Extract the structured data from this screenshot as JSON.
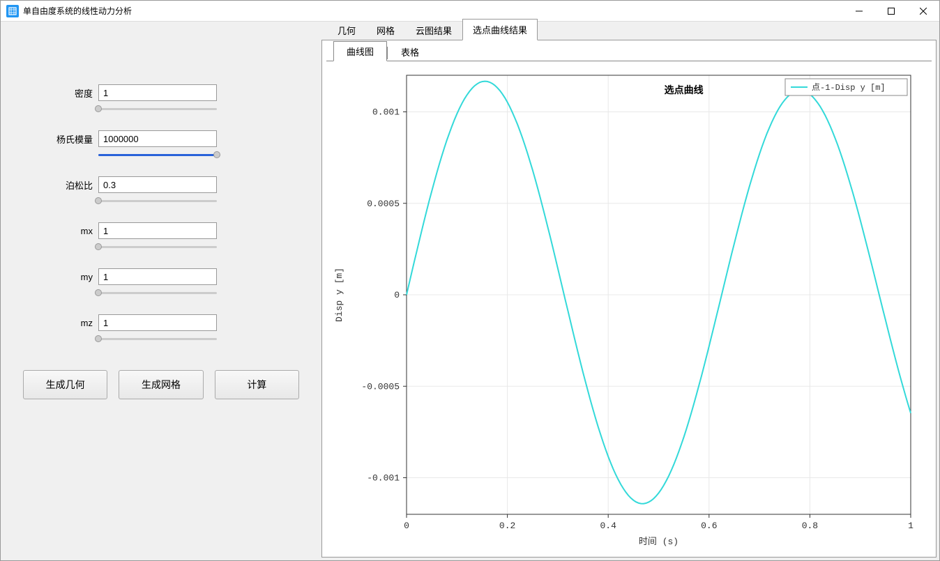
{
  "window": {
    "title": "单自由度系统的线性动力分析",
    "icon_bg": "#2196f3"
  },
  "params": [
    {
      "label": "密度",
      "value": "1",
      "slider_pct": 0
    },
    {
      "label": "杨氏模量",
      "value": "1000000",
      "slider_pct": 100
    },
    {
      "label": "泊松比",
      "value": "0.3",
      "slider_pct": 0
    },
    {
      "label": "mx",
      "value": "1",
      "slider_pct": 0
    },
    {
      "label": "my",
      "value": "1",
      "slider_pct": 0
    },
    {
      "label": "mz",
      "value": "1",
      "slider_pct": 0
    }
  ],
  "buttons": {
    "gen_geom": "生成几何",
    "gen_mesh": "生成网格",
    "compute": "计算"
  },
  "outer_tabs": [
    {
      "label": "几何",
      "active": false
    },
    {
      "label": "网格",
      "active": false
    },
    {
      "label": "云图结果",
      "active": false
    },
    {
      "label": "选点曲线结果",
      "active": true
    }
  ],
  "inner_tabs": [
    {
      "label": "曲线图",
      "active": true
    },
    {
      "label": "表格",
      "active": false
    }
  ],
  "chart": {
    "type": "line",
    "title": "选点曲线",
    "xlabel": "时间 (s)",
    "ylabel": "Disp y [m]",
    "xlim": [
      0,
      1
    ],
    "ylim": [
      -0.0012,
      0.0012
    ],
    "xticks": [
      0,
      0.2,
      0.4,
      0.6,
      0.8,
      1
    ],
    "xtick_labels": [
      "0",
      "0.2",
      "0.4",
      "0.6",
      "0.8",
      "1"
    ],
    "yticks": [
      -0.001,
      -0.0005,
      0,
      0.0005,
      0.001
    ],
    "ytick_labels": [
      "-0.001",
      "-0.0005",
      "0",
      "0.0005",
      "0.001"
    ],
    "line_color": "#33d9d9",
    "line_width": 2,
    "grid_color": "#e8e8e8",
    "axis_color": "#333333",
    "background_color": "#ffffff",
    "legend_label": "点-1-Disp y [m]",
    "series": {
      "freq_hz": 1.6,
      "amplitude": 0.00118,
      "damping": 0.07,
      "n_points": 200
    }
  }
}
